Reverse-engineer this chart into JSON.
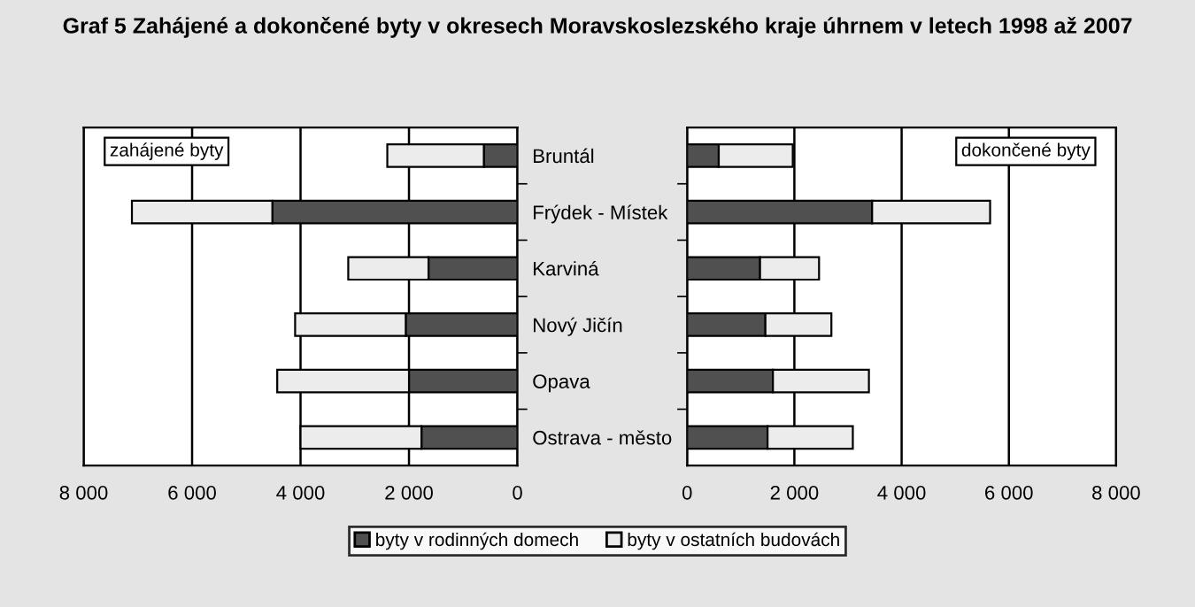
{
  "chart_data": [
    {
      "type": "bar",
      "orientation": "horizontal",
      "stacked": true,
      "title": "zahájené byty",
      "annotations": [
        "Graf 5 Zahájené a dokončené byty v okresech Moravskoslezského kraje úhrnem v letech 1998 až 2007"
      ],
      "categories": [
        "Bruntál",
        "Frýdek - Místek",
        "Karviná",
        "Nový Jičín",
        "Opava",
        "Ostrava - město"
      ],
      "series": [
        {
          "name": "byty v rodinných domech",
          "color": "#505050",
          "values": [
            620,
            4520,
            1640,
            2060,
            2000,
            1770
          ]
        },
        {
          "name": "byty v ostatních budovách",
          "color": "#ececec",
          "values": [
            1780,
            2590,
            1480,
            2040,
            2430,
            2230
          ]
        }
      ],
      "xlim": [
        8000,
        0
      ],
      "xticks": [
        {
          "value": 8000,
          "label": "8 000"
        },
        {
          "value": 6000,
          "label": "6 000"
        },
        {
          "value": 4000,
          "label": "4 000"
        },
        {
          "value": 2000,
          "label": "2 000"
        },
        0
      ],
      "grid": "x",
      "legend": "bottom"
    },
    {
      "type": "bar",
      "orientation": "horizontal",
      "stacked": true,
      "title": "dokončené byty",
      "categories": [
        null,
        null,
        null,
        null,
        null,
        null
      ],
      "series": [
        {
          "name": "byty v rodinných domech",
          "color": "#505050",
          "values": [
            590,
            3450,
            1360,
            1460,
            1600,
            1500
          ]
        },
        {
          "name": "byty v ostatních budovách",
          "color": "#ececec",
          "values": [
            1380,
            2200,
            1100,
            1230,
            1790,
            1590
          ]
        }
      ],
      "xlim": [
        0,
        8000
      ],
      "xticks": [
        0,
        {
          "value": 2000,
          "label": "2 000"
        },
        {
          "value": 4000,
          "label": "4 000"
        },
        {
          "value": 6000,
          "label": "6 000"
        },
        {
          "value": 8000,
          "label": "8 000"
        }
      ],
      "grid": "x",
      "tick_labels": "x"
    }
  ]
}
